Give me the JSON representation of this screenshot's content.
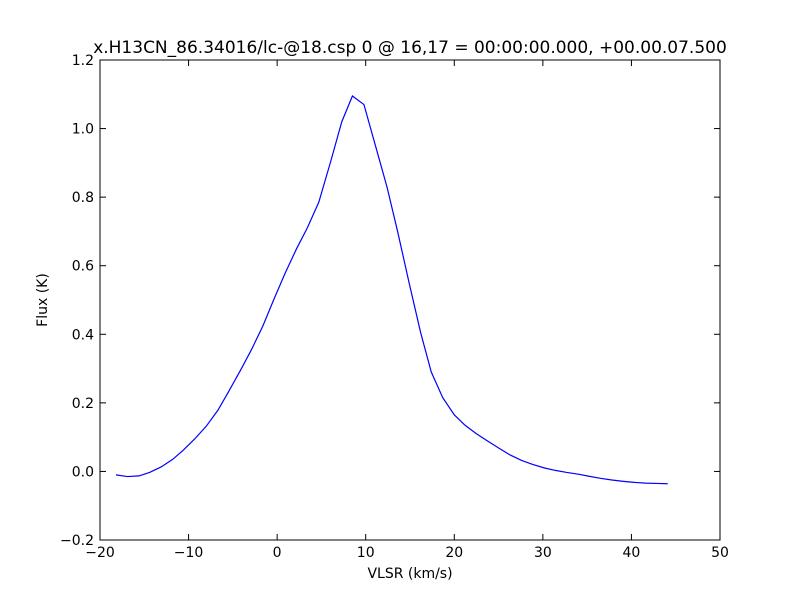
{
  "chart_data": {
    "type": "line",
    "title": "x.H13CN_86.34016/lc-@18.csp 0 @ 16,17 = 00:00:00.000, +00.00.07.500",
    "xlabel": "VLSR (km/s)",
    "ylabel": "Flux (K)",
    "xlim": [
      -20,
      50
    ],
    "ylim": [
      -0.2,
      1.2
    ],
    "xticks": [
      -20,
      -10,
      0,
      10,
      20,
      30,
      40,
      50
    ],
    "xtick_labels": [
      "−20",
      "−10",
      "0",
      "10",
      "20",
      "30",
      "40",
      "50"
    ],
    "yticks": [
      -0.2,
      0.0,
      0.2,
      0.4,
      0.6,
      0.8,
      1.0,
      1.2
    ],
    "ytick_labels": [
      "−0.2",
      "0.0",
      "0.2",
      "0.4",
      "0.6",
      "0.8",
      "1.0",
      "1.2"
    ],
    "grid": false,
    "line_color": "#0000ff",
    "series": [
      {
        "x": [
          -18.2,
          -16.9,
          -15.6,
          -14.4,
          -13.1,
          -11.8,
          -10.6,
          -9.3,
          -8.0,
          -6.7,
          -5.5,
          -4.2,
          -2.9,
          -1.6,
          -0.4,
          0.9,
          2.2,
          3.4,
          4.7,
          6.0,
          7.3,
          8.5,
          9.8,
          11.1,
          12.4,
          13.6,
          14.9,
          16.2,
          17.4,
          18.7,
          20.0,
          21.2,
          22.5,
          23.8,
          25.1,
          26.3,
          27.6,
          28.9,
          30.2,
          31.4,
          32.7,
          34.0,
          35.2,
          36.5,
          37.8,
          39.1,
          40.3,
          41.6,
          42.9,
          44.1
        ],
        "y": [
          -0.01,
          -0.015,
          -0.013,
          -0.003,
          0.013,
          0.035,
          0.062,
          0.095,
          0.132,
          0.178,
          0.232,
          0.292,
          0.355,
          0.425,
          0.5,
          0.578,
          0.65,
          0.71,
          0.785,
          0.9,
          1.02,
          1.095,
          1.07,
          0.95,
          0.83,
          0.7,
          0.55,
          0.405,
          0.29,
          0.215,
          0.165,
          0.135,
          0.11,
          0.088,
          0.067,
          0.048,
          0.032,
          0.02,
          0.01,
          0.003,
          -0.003,
          -0.008,
          -0.014,
          -0.02,
          -0.025,
          -0.029,
          -0.032,
          -0.034,
          -0.035,
          -0.036
        ]
      }
    ]
  }
}
